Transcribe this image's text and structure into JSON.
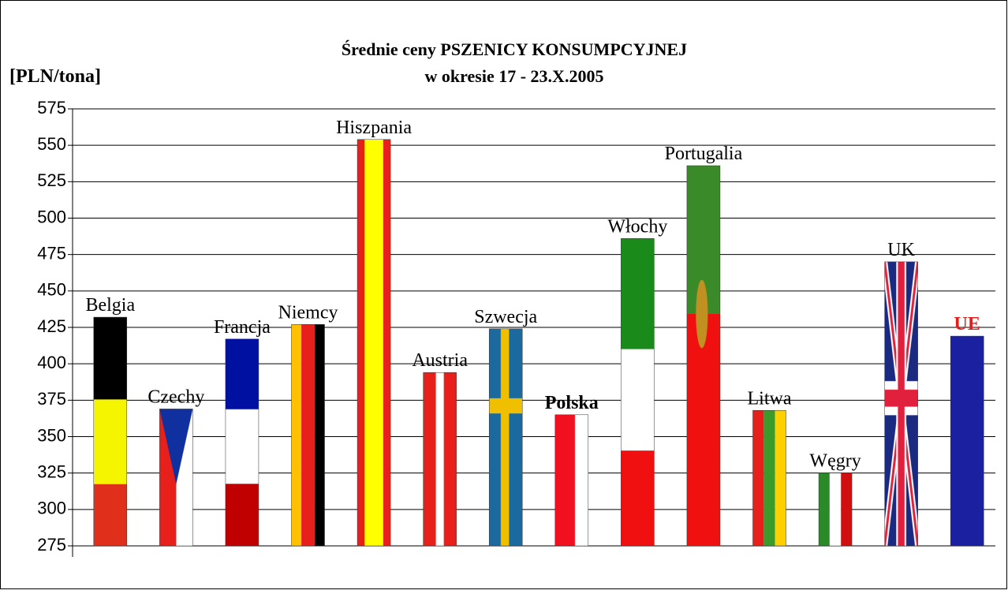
{
  "chart_data": {
    "type": "bar",
    "title": "Średnie ceny PSZENICY KONSUMPCYJNEJ",
    "subtitle": "w okresie 17 - 23.X.2005",
    "y_label": "[PLN/tona]",
    "categories": [
      "Belgia",
      "Czechy",
      "Francja",
      "Niemcy",
      "Hiszpania",
      "Austria",
      "Szwecja",
      "Polska",
      "Włochy",
      "Portugalia",
      "Litwa",
      "Węgry",
      "UK",
      "UE"
    ],
    "values": [
      432,
      369,
      417,
      427,
      554,
      394,
      424,
      365,
      486,
      536,
      368,
      325,
      470,
      419
    ],
    "ylim": [
      275,
      575
    ],
    "yticks": [
      275,
      300,
      325,
      350,
      375,
      400,
      425,
      450,
      475,
      500,
      525,
      550,
      575
    ],
    "grid": true
  }
}
